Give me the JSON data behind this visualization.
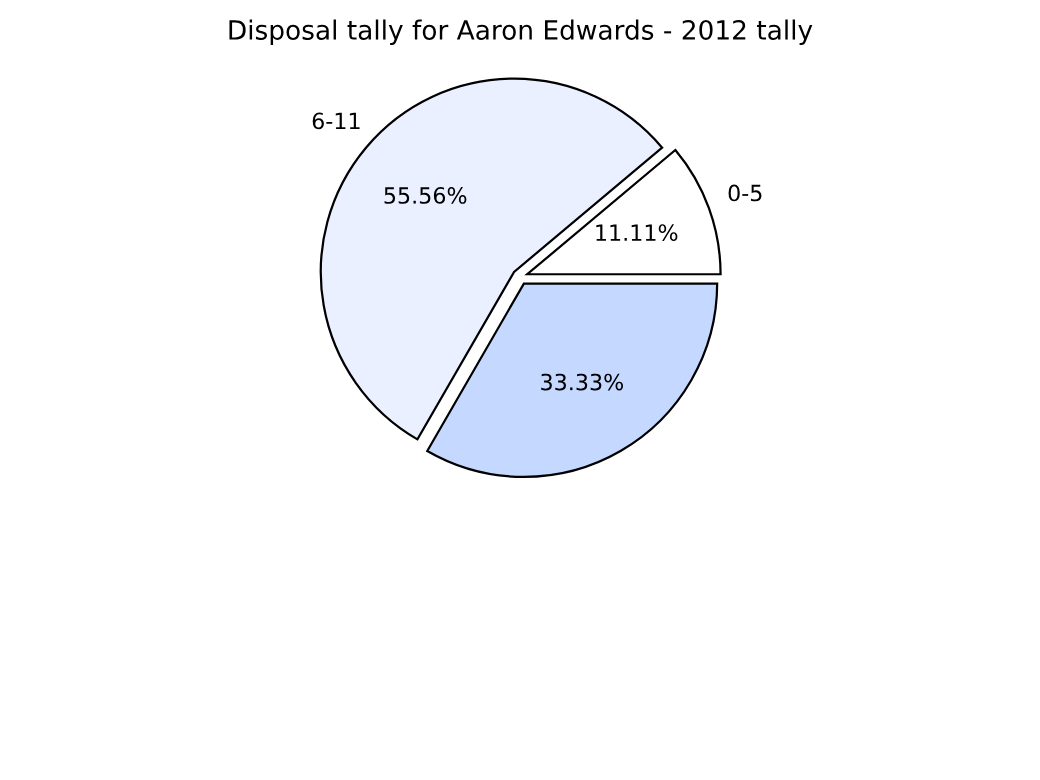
{
  "chart_data": {
    "type": "pie",
    "title": "Disposal tally for Aaron Edwards - 2012 tally",
    "categories": [
      "0-5",
      "6-11",
      null
    ],
    "values": [
      11.11,
      55.56,
      33.33
    ],
    "colors": [
      "#ffffff",
      "#eaf0ff",
      "#c5d8ff"
    ],
    "value_labels": [
      "11.11%",
      "55.56%",
      "33.33%"
    ]
  }
}
